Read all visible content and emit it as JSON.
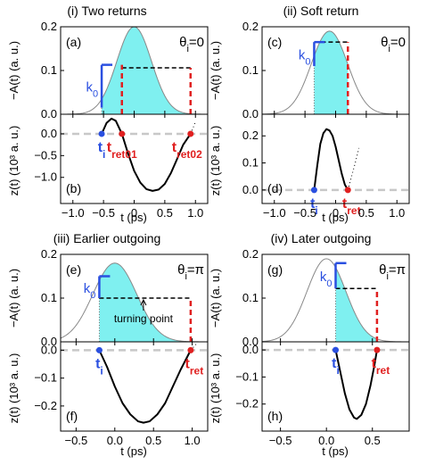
{
  "chart_data": [
    {
      "type": "area",
      "id": "i",
      "title": "(i) Two returns",
      "ylabel_top": "−A(t) (a. u.)",
      "ylabel_bottom": "z(t) (10³ a. u.)",
      "xlabel": "t (ps)",
      "xlim": [
        -1.2,
        1.2
      ],
      "xticks": [
        -1.0,
        -0.5,
        0.0,
        0.5,
        1.0
      ],
      "xtick_labels": [
        "−1.0",
        "−0.5",
        "0",
        "0.5",
        "1.0"
      ],
      "top_panel_label": "(a)",
      "bottom_panel_label": "(b)",
      "theta_label": "θi=0",
      "k0_label": "k0",
      "top_ylim": [
        0,
        0.2
      ],
      "top_yticks": [
        0.0,
        0.1,
        0.2
      ],
      "top_ytick_labels": [
        "0.0",
        "0.1",
        "0.2"
      ],
      "pulse": {
        "center": 0.0,
        "sigma": 0.4,
        "amplitude": 0.2
      },
      "shade_range": [
        -0.53,
        0.92
      ],
      "k0_line": {
        "t": -0.53,
        "y0": 0.015,
        "y1": 0.113
      },
      "dashed_h": {
        "from": -0.2,
        "to": 0.92,
        "y": 0.106
      },
      "red_dashed": [
        {
          "t": -0.2,
          "y": 0.113
        },
        {
          "t": 0.92,
          "y": 0.106
        }
      ],
      "bottom_ylim": [
        -1.6,
        0.45
      ],
      "bottom_yticks": [
        0.0,
        -0.5,
        -1.0
      ],
      "bottom_ytick_labels": [
        "0.0",
        "−0.5",
        "−1.0"
      ],
      "trajectory": [
        [
          -0.53,
          0.0
        ],
        [
          -0.45,
          0.25
        ],
        [
          -0.37,
          0.35
        ],
        [
          -0.3,
          0.3
        ],
        [
          -0.2,
          0.0
        ],
        [
          -0.1,
          -0.45
        ],
        [
          0.0,
          -0.85
        ],
        [
          0.1,
          -1.12
        ],
        [
          0.2,
          -1.27
        ],
        [
          0.3,
          -1.31
        ],
        [
          0.4,
          -1.28
        ],
        [
          0.5,
          -1.15
        ],
        [
          0.6,
          -0.9
        ],
        [
          0.7,
          -0.58
        ],
        [
          0.8,
          -0.25
        ],
        [
          0.92,
          0.0
        ]
      ],
      "dotted_extension": [
        [
          0.92,
          0.0
        ],
        [
          0.95,
          0.1
        ],
        [
          0.98,
          0.2
        ],
        [
          1.0,
          0.28
        ]
      ],
      "points": [
        {
          "label": "ti",
          "t": -0.53,
          "z": 0.0,
          "color": "#2a4fe0"
        },
        {
          "label": "tret01",
          "t": -0.2,
          "z": 0.0,
          "color": "#e02020"
        },
        {
          "label": "tret02",
          "t": 0.92,
          "z": 0.0,
          "color": "#e02020"
        }
      ]
    },
    {
      "type": "area",
      "id": "ii",
      "title": "(ii) Soft return",
      "ylabel_top": "−A(t) (a. u.)",
      "ylabel_bottom": "z(t) (10³ a. u.)",
      "xlabel": "t (ps)",
      "xlim": [
        -1.2,
        1.2
      ],
      "xticks": [
        -1.0,
        -0.5,
        0.0,
        0.5,
        1.0
      ],
      "xtick_labels": [
        "−1.0",
        "−0.5",
        "0",
        "0.5",
        "1.0"
      ],
      "top_panel_label": "(c)",
      "bottom_panel_label": "(d)",
      "theta_label": "θi=0",
      "k0_label": "k0",
      "top_ylim": [
        0,
        0.2
      ],
      "top_yticks": [
        0.0,
        0.1,
        0.2
      ],
      "top_ytick_labels": [
        "0.0",
        "0.1",
        "0.2"
      ],
      "pulse": {
        "center": -0.1,
        "sigma": 0.42,
        "amplitude": 0.19
      },
      "shade_range": [
        -0.35,
        0.2
      ],
      "k0_line": {
        "t": -0.35,
        "y0": 0.11,
        "y1": 0.165
      },
      "dashed_h": {
        "from": -0.35,
        "to": 0.2,
        "y": 0.165
      },
      "red_dashed": [
        {
          "t": 0.2,
          "y": 0.165
        }
      ],
      "bottom_ylim": [
        -0.05,
        0.28
      ],
      "bottom_yticks": [
        0.0,
        0.1,
        0.2
      ],
      "bottom_ytick_labels": [
        "0.0",
        "0.1",
        "0.2"
      ],
      "trajectory": [
        [
          -0.35,
          0.0
        ],
        [
          -0.3,
          0.09
        ],
        [
          -0.25,
          0.17
        ],
        [
          -0.2,
          0.21
        ],
        [
          -0.15,
          0.225
        ],
        [
          -0.1,
          0.22
        ],
        [
          -0.05,
          0.2
        ],
        [
          0.0,
          0.16
        ],
        [
          0.05,
          0.11
        ],
        [
          0.1,
          0.06
        ],
        [
          0.15,
          0.02
        ],
        [
          0.2,
          0.0
        ]
      ],
      "dotted_extension": [
        [
          0.2,
          0.0
        ],
        [
          0.26,
          0.05
        ],
        [
          0.32,
          0.1
        ],
        [
          0.38,
          0.155
        ]
      ],
      "points": [
        {
          "label": "ti",
          "t": -0.35,
          "z": 0.0,
          "color": "#2a4fe0"
        },
        {
          "label": "tret",
          "t": 0.2,
          "z": 0.0,
          "color": "#e02020"
        }
      ]
    },
    {
      "type": "area",
      "id": "iii",
      "title": "(iii) Earlier outgoing",
      "ylabel_top": "−A(t) (a. u.)",
      "ylabel_bottom": "z(t) (10³ a. u.)",
      "xlabel": "t (ps)",
      "xlim": [
        -0.7,
        1.2
      ],
      "xticks": [
        -0.5,
        0.0,
        0.5,
        1.0
      ],
      "xtick_labels": [
        "−0.5",
        "0.0",
        "0.5",
        "1.0"
      ],
      "top_panel_label": "(e)",
      "bottom_panel_label": "(f)",
      "theta_label": "θi=π",
      "k0_label": "k0",
      "top_ylim": [
        0,
        0.2
      ],
      "top_yticks": [
        0.0,
        0.1,
        0.2
      ],
      "top_ytick_labels": [
        "0.0",
        "0.1",
        "0.2"
      ],
      "pulse": {
        "center": 0.0,
        "sigma": 0.4,
        "amplitude": 0.18
      },
      "shade_range": [
        -0.2,
        0.98
      ],
      "k0_line": {
        "t": -0.2,
        "y0": 0.1,
        "y1": 0.15
      },
      "dashed_h": {
        "from": -0.2,
        "to": 0.98,
        "y": 0.1
      },
      "red_dashed": [
        {
          "t": 0.98,
          "y": 0.1
        }
      ],
      "annotation": {
        "text": "turning point",
        "t": 0.37,
        "y": 0.1
      },
      "bottom_ylim": [
        -0.29,
        0.03
      ],
      "bottom_yticks": [
        0.0,
        -0.1,
        -0.2
      ],
      "bottom_ytick_labels": [
        "0.0",
        "−0.1",
        "−0.2"
      ],
      "trajectory": [
        [
          -0.2,
          0.0
        ],
        [
          -0.1,
          -0.06
        ],
        [
          0.0,
          -0.13
        ],
        [
          0.1,
          -0.19
        ],
        [
          0.2,
          -0.23
        ],
        [
          0.3,
          -0.255
        ],
        [
          0.37,
          -0.26
        ],
        [
          0.45,
          -0.255
        ],
        [
          0.55,
          -0.23
        ],
        [
          0.65,
          -0.19
        ],
        [
          0.75,
          -0.13
        ],
        [
          0.85,
          -0.07
        ],
        [
          0.98,
          0.0
        ]
      ],
      "dotted_extension": [
        [
          0.98,
          0.0
        ],
        [
          1.02,
          0.012
        ],
        [
          1.06,
          0.025
        ]
      ],
      "points": [
        {
          "label": "ti",
          "t": -0.2,
          "z": 0.0,
          "color": "#2a4fe0"
        },
        {
          "label": "tret",
          "t": 0.98,
          "z": 0.0,
          "color": "#e02020"
        }
      ]
    },
    {
      "type": "area",
      "id": "iv",
      "title": "(iv) Later outgoing",
      "ylabel_top": "−A(t) (a. u.)",
      "ylabel_bottom": "z(t) (10³ a. u.)",
      "xlabel": "t (ps)",
      "xlim": [
        -0.7,
        0.9
      ],
      "xticks": [
        -0.5,
        0.0,
        0.5
      ],
      "xtick_labels": [
        "−0.5",
        "0.0",
        "0.5"
      ],
      "top_panel_label": "(g)",
      "bottom_panel_label": "(h)",
      "theta_label": "θi=π",
      "k0_label": "k0",
      "top_ylim": [
        0,
        0.2
      ],
      "top_yticks": [
        0.0,
        0.1,
        0.2
      ],
      "top_ytick_labels": [
        "0.0",
        "0.1",
        "0.2"
      ],
      "pulse": {
        "center": 0.0,
        "sigma": 0.3,
        "amplitude": 0.19
      },
      "shade_range": [
        0.1,
        0.55
      ],
      "k0_line": {
        "t": 0.1,
        "y0": 0.122,
        "y1": 0.18
      },
      "dashed_h": {
        "from": 0.1,
        "to": 0.55,
        "y": 0.122
      },
      "red_dashed": [
        {
          "t": 0.55,
          "y": 0.122
        }
      ],
      "bottom_ylim": [
        -0.3,
        0.03
      ],
      "bottom_yticks": [
        0.0,
        -0.1,
        -0.2
      ],
      "bottom_ytick_labels": [
        "0.0",
        "−0.1",
        "−0.2"
      ],
      "trajectory": [
        [
          0.1,
          0.0
        ],
        [
          0.15,
          -0.08
        ],
        [
          0.2,
          -0.16
        ],
        [
          0.25,
          -0.22
        ],
        [
          0.3,
          -0.25
        ],
        [
          0.33,
          -0.255
        ],
        [
          0.38,
          -0.24
        ],
        [
          0.43,
          -0.2
        ],
        [
          0.48,
          -0.13
        ],
        [
          0.52,
          -0.06
        ],
        [
          0.55,
          0.0
        ]
      ],
      "dotted_extension": [],
      "points": [
        {
          "label": "ti",
          "t": 0.1,
          "z": 0.0,
          "color": "#2a4fe0"
        },
        {
          "label": "tret",
          "t": 0.55,
          "z": 0.0,
          "color": "#e02020"
        }
      ]
    }
  ]
}
